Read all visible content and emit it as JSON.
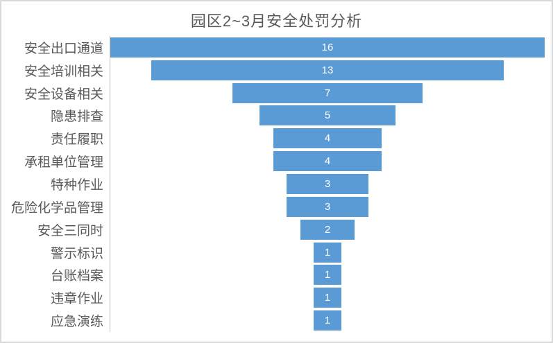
{
  "chart_data": {
    "type": "bar",
    "subtype": "funnel",
    "orientation": "horizontal-centered",
    "title": "园区2~3月安全处罚分析",
    "categories": [
      "安全出口通道",
      "安全培训相关",
      "安全设备相关",
      "隐患排查",
      "责任履职",
      "承租单位管理",
      "特种作业",
      "危险化学品管理",
      "安全三同时",
      "警示标识",
      "台账档案",
      "违章作业",
      "应急演练"
    ],
    "values": [
      16,
      13,
      7,
      5,
      4,
      4,
      3,
      3,
      2,
      1,
      1,
      1,
      1
    ],
    "value_axis_max": 16,
    "data_labels": "inside-center",
    "legend_position": "none",
    "grid": false,
    "colors": {
      "bar_fill": "#5b9bd5",
      "value_label": "#ffffff",
      "category_label": "#595959",
      "title": "#595959",
      "axis_line": "#bfbfbf",
      "frame_border": "#d9d9d9",
      "background": "#ffffff"
    }
  }
}
